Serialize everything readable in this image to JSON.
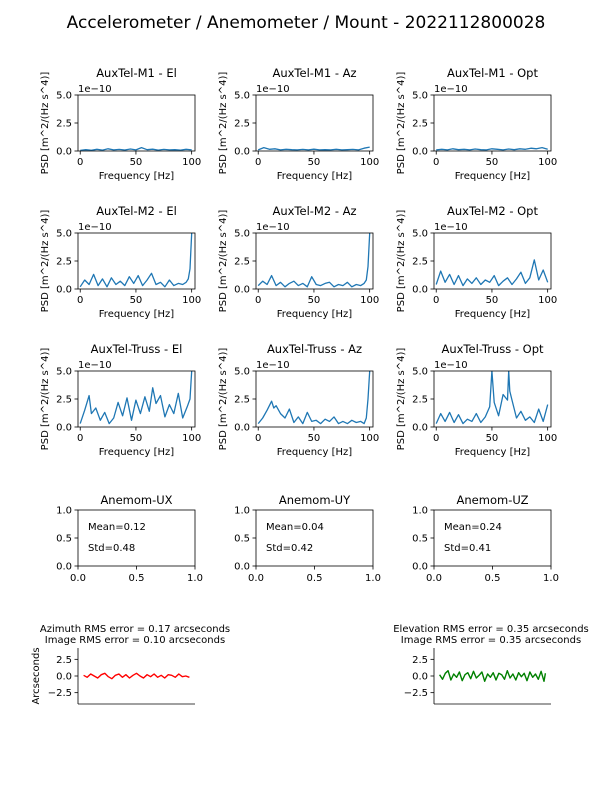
{
  "figure_title": "Accelerometer / Anemometer / Mount - 2022112800028",
  "colors": {
    "psd": "#1f77b4",
    "azimuth": "#ff0000",
    "elevation": "#008000",
    "axis": "#000000"
  },
  "chart_data": [
    {
      "type": "line",
      "id": "m1-el",
      "title": "AuxTel-M1 - El",
      "xlabel": "Frequency [Hz]",
      "ylabel": "PSD [m^2/(Hz s^4)]",
      "offset_label": "1e−10",
      "xlim": [
        -2,
        103
      ],
      "ylim": [
        0,
        5.0
      ],
      "xticks": [
        0,
        50,
        100
      ],
      "yticks": [
        0.0,
        2.5,
        5.0
      ],
      "yticklabels": [
        "0.0",
        "2.5",
        "5.0"
      ],
      "series": [
        {
          "name": "PSD",
          "x": [
            0,
            5,
            10,
            15,
            20,
            25,
            30,
            35,
            40,
            45,
            50,
            55,
            60,
            65,
            70,
            75,
            80,
            85,
            90,
            95,
            100
          ],
          "values": [
            0.05,
            0.12,
            0.06,
            0.15,
            0.08,
            0.2,
            0.1,
            0.14,
            0.09,
            0.18,
            0.1,
            0.3,
            0.12,
            0.16,
            0.08,
            0.14,
            0.1,
            0.12,
            0.08,
            0.15,
            0.1
          ]
        }
      ]
    },
    {
      "type": "line",
      "id": "m1-az",
      "title": "AuxTel-M1 - Az",
      "xlabel": "Frequency [Hz]",
      "ylabel": "PSD [m^2/(Hz s^4)]",
      "offset_label": "1e−10",
      "xlim": [
        -2,
        103
      ],
      "ylim": [
        0,
        5.0
      ],
      "xticks": [
        0,
        50,
        100
      ],
      "yticks": [
        0.0,
        2.5,
        5.0
      ],
      "yticklabels": [
        "0.0",
        "2.5",
        "5.0"
      ],
      "series": [
        {
          "name": "PSD",
          "x": [
            0,
            5,
            10,
            15,
            20,
            25,
            30,
            35,
            40,
            45,
            50,
            55,
            60,
            65,
            70,
            75,
            80,
            85,
            90,
            95,
            100
          ],
          "values": [
            0.1,
            0.3,
            0.15,
            0.2,
            0.1,
            0.15,
            0.12,
            0.1,
            0.14,
            0.1,
            0.16,
            0.1,
            0.12,
            0.1,
            0.15,
            0.1,
            0.12,
            0.14,
            0.1,
            0.25,
            0.35
          ]
        }
      ]
    },
    {
      "type": "line",
      "id": "m1-opt",
      "title": "AuxTel-M1 - Opt",
      "xlabel": "Frequency [Hz]",
      "ylabel": "PSD [m^2/(Hz s^4)]",
      "offset_label": "1e−10",
      "xlim": [
        -2,
        103
      ],
      "ylim": [
        0,
        5.0
      ],
      "xticks": [
        0,
        50,
        100
      ],
      "yticks": [
        0.0,
        2.5,
        5.0
      ],
      "yticklabels": [
        "0.0",
        "2.5",
        "5.0"
      ],
      "series": [
        {
          "name": "PSD",
          "x": [
            0,
            5,
            10,
            15,
            20,
            25,
            30,
            35,
            40,
            45,
            50,
            55,
            60,
            65,
            70,
            75,
            80,
            85,
            90,
            95,
            100
          ],
          "values": [
            0.1,
            0.15,
            0.1,
            0.2,
            0.12,
            0.15,
            0.1,
            0.18,
            0.12,
            0.1,
            0.2,
            0.15,
            0.1,
            0.18,
            0.12,
            0.2,
            0.15,
            0.25,
            0.2,
            0.3,
            0.15
          ]
        }
      ]
    },
    {
      "type": "line",
      "id": "m2-el",
      "title": "AuxTel-M2 - El",
      "xlabel": "Frequency [Hz]",
      "ylabel": "PSD [m^2/(Hz s^4)]",
      "offset_label": "1e−10",
      "xlim": [
        -2,
        103
      ],
      "ylim": [
        0,
        5.0
      ],
      "xticks": [
        0,
        50,
        100
      ],
      "yticks": [
        0.0,
        2.5,
        5.0
      ],
      "yticklabels": [
        "0.0",
        "2.5",
        "5.0"
      ],
      "series": [
        {
          "name": "PSD",
          "x": [
            0,
            4,
            8,
            12,
            16,
            20,
            24,
            28,
            32,
            36,
            40,
            44,
            48,
            52,
            56,
            60,
            64,
            68,
            72,
            76,
            80,
            84,
            88,
            92,
            95,
            97,
            98.5,
            100
          ],
          "values": [
            0.2,
            0.8,
            0.4,
            1.3,
            0.3,
            0.9,
            0.2,
            1.0,
            0.4,
            0.7,
            0.3,
            1.1,
            0.5,
            1.2,
            0.3,
            0.8,
            1.4,
            0.4,
            0.6,
            0.2,
            0.8,
            0.3,
            0.5,
            0.4,
            0.6,
            0.9,
            1.8,
            5.0
          ]
        }
      ]
    },
    {
      "type": "line",
      "id": "m2-az",
      "title": "AuxTel-M2 - Az",
      "xlabel": "Frequency [Hz]",
      "ylabel": "PSD [m^2/(Hz s^4)]",
      "offset_label": "1e−10",
      "xlim": [
        -2,
        103
      ],
      "ylim": [
        0,
        5.0
      ],
      "xticks": [
        0,
        50,
        100
      ],
      "yticks": [
        0.0,
        2.5,
        5.0
      ],
      "yticklabels": [
        "0.0",
        "2.5",
        "5.0"
      ],
      "series": [
        {
          "name": "PSD",
          "x": [
            0,
            4,
            8,
            12,
            16,
            20,
            24,
            28,
            32,
            36,
            40,
            44,
            48,
            52,
            56,
            60,
            64,
            68,
            72,
            76,
            80,
            84,
            88,
            92,
            95,
            97,
            98.5,
            100
          ],
          "values": [
            0.3,
            0.7,
            0.4,
            1.2,
            0.3,
            0.6,
            0.2,
            0.5,
            0.7,
            0.3,
            0.5,
            0.2,
            1.1,
            0.4,
            0.3,
            0.5,
            0.6,
            0.2,
            0.4,
            0.3,
            0.6,
            0.2,
            0.4,
            0.3,
            0.5,
            0.8,
            2.0,
            5.0
          ]
        }
      ]
    },
    {
      "type": "line",
      "id": "m2-opt",
      "title": "AuxTel-M2 - Opt",
      "xlabel": "Frequency [Hz]",
      "ylabel": "PSD [m^2/(Hz s^4)]",
      "offset_label": "1e−10",
      "xlim": [
        -2,
        103
      ],
      "ylim": [
        0,
        5.0
      ],
      "xticks": [
        0,
        50,
        100
      ],
      "yticks": [
        0.0,
        2.5,
        5.0
      ],
      "yticklabels": [
        "0.0",
        "2.5",
        "5.0"
      ],
      "series": [
        {
          "name": "PSD",
          "x": [
            0,
            4,
            8,
            12,
            16,
            20,
            24,
            28,
            32,
            36,
            40,
            44,
            48,
            52,
            56,
            60,
            64,
            68,
            72,
            76,
            80,
            84,
            88,
            92,
            96,
            100
          ],
          "values": [
            0.4,
            1.6,
            0.6,
            1.3,
            0.4,
            1.2,
            0.3,
            0.9,
            0.5,
            1.0,
            0.4,
            0.8,
            0.6,
            1.2,
            0.3,
            0.7,
            1.0,
            0.4,
            0.9,
            1.5,
            0.5,
            1.0,
            2.6,
            0.8,
            1.7,
            0.6
          ]
        }
      ]
    },
    {
      "type": "line",
      "id": "truss-el",
      "title": "AuxTel-Truss - El",
      "xlabel": "Frequency [Hz]",
      "ylabel": "PSD [m^2/(Hz s^4)]",
      "offset_label": "1e−10",
      "xlim": [
        -2,
        103
      ],
      "ylim": [
        0,
        5.0
      ],
      "xticks": [
        0,
        50,
        100
      ],
      "yticks": [
        0.0,
        2.5,
        5.0
      ],
      "yticklabels": [
        "0.0",
        "2.5",
        "5.0"
      ],
      "series": [
        {
          "name": "PSD",
          "x": [
            0,
            4,
            8,
            10,
            14,
            18,
            22,
            26,
            30,
            34,
            38,
            42,
            46,
            50,
            54,
            58,
            62,
            65,
            68,
            72,
            76,
            80,
            84,
            88,
            92,
            96,
            98.5,
            100
          ],
          "values": [
            0.3,
            1.5,
            2.8,
            1.2,
            1.7,
            0.6,
            1.3,
            0.3,
            0.8,
            2.2,
            1.0,
            2.6,
            0.6,
            2.4,
            1.2,
            2.7,
            1.4,
            3.5,
            2.1,
            2.8,
            0.9,
            2.0,
            1.2,
            3.0,
            0.8,
            1.8,
            2.5,
            5.0
          ]
        }
      ]
    },
    {
      "type": "line",
      "id": "truss-az",
      "title": "AuxTel-Truss - Az",
      "xlabel": "Frequency [Hz]",
      "ylabel": "PSD [m^2/(Hz s^4)]",
      "offset_label": "1e−10",
      "xlim": [
        -2,
        103
      ],
      "ylim": [
        0,
        5.0
      ],
      "xticks": [
        0,
        50,
        100
      ],
      "yticks": [
        0.0,
        2.5,
        5.0
      ],
      "yticklabels": [
        "0.0",
        "2.5",
        "5.0"
      ],
      "series": [
        {
          "name": "PSD",
          "x": [
            0,
            4,
            8,
            12,
            14,
            16,
            20,
            24,
            28,
            32,
            36,
            40,
            44,
            48,
            52,
            56,
            60,
            64,
            68,
            72,
            76,
            80,
            84,
            88,
            92,
            95,
            97,
            98.5,
            100
          ],
          "values": [
            0.3,
            0.8,
            1.5,
            2.3,
            1.7,
            1.9,
            1.2,
            0.8,
            1.6,
            0.4,
            0.9,
            0.3,
            1.3,
            0.5,
            0.6,
            0.3,
            0.7,
            0.5,
            0.9,
            0.3,
            0.5,
            0.3,
            0.6,
            0.4,
            0.5,
            0.3,
            0.8,
            2.5,
            5.0
          ]
        }
      ]
    },
    {
      "type": "line",
      "id": "truss-opt",
      "title": "AuxTel-Truss - Opt",
      "xlabel": "Frequency [Hz]",
      "ylabel": "PSD [m^2/(Hz s^4)]",
      "offset_label": "1e−10",
      "xlim": [
        -2,
        103
      ],
      "ylim": [
        0,
        5.0
      ],
      "xticks": [
        0,
        50,
        100
      ],
      "yticks": [
        0.0,
        2.5,
        5.0
      ],
      "yticklabels": [
        "0.0",
        "2.5",
        "5.0"
      ],
      "series": [
        {
          "name": "PSD",
          "x": [
            0,
            4,
            8,
            12,
            16,
            20,
            24,
            28,
            32,
            36,
            40,
            44,
            48,
            50,
            52,
            56,
            60,
            64,
            65,
            66,
            68,
            72,
            76,
            80,
            84,
            88,
            92,
            96,
            100
          ],
          "values": [
            0.3,
            1.2,
            0.5,
            1.3,
            0.4,
            1.1,
            0.3,
            0.7,
            0.5,
            1.2,
            0.4,
            0.9,
            1.8,
            5.0,
            2.2,
            1.0,
            2.9,
            2.4,
            5.0,
            3.2,
            2.4,
            0.8,
            1.4,
            0.6,
            0.9,
            0.4,
            1.6,
            0.5,
            2.0
          ]
        }
      ]
    },
    {
      "type": "table",
      "id": "anemom-ux",
      "title": "Anemom-UX",
      "xlim": [
        0,
        1
      ],
      "ylim": [
        0,
        1
      ],
      "xticks": [
        0.0,
        0.5,
        1.0
      ],
      "xticklabels": [
        "0.0",
        "0.5",
        "1.0"
      ],
      "yticks": [
        0.0,
        0.5,
        1.0
      ],
      "yticklabels": [
        "0.0",
        "0.5",
        "1.0"
      ],
      "annotations": [
        "Mean=0.12",
        "Std=0.48"
      ]
    },
    {
      "type": "table",
      "id": "anemom-uy",
      "title": "Anemom-UY",
      "xlim": [
        0,
        1
      ],
      "ylim": [
        0,
        1
      ],
      "xticks": [
        0.0,
        0.5,
        1.0
      ],
      "xticklabels": [
        "0.0",
        "0.5",
        "1.0"
      ],
      "yticks": [
        0.0,
        0.5,
        1.0
      ],
      "yticklabels": [
        "0.0",
        "0.5",
        "1.0"
      ],
      "annotations": [
        "Mean=0.04",
        "Std=0.42"
      ]
    },
    {
      "type": "table",
      "id": "anemom-uz",
      "title": "Anemom-UZ",
      "xlim": [
        0,
        1
      ],
      "ylim": [
        0,
        1
      ],
      "xticks": [
        0.0,
        0.5,
        1.0
      ],
      "xticklabels": [
        "0.0",
        "0.5",
        "1.0"
      ],
      "yticks": [
        0.0,
        0.5,
        1.0
      ],
      "yticklabels": [
        "0.0",
        "0.5",
        "1.0"
      ],
      "annotations": [
        "Mean=0.24",
        "Std=0.41"
      ]
    },
    {
      "type": "line",
      "id": "az-error",
      "title_lines": [
        "Azimuth RMS error = 0.17 arcseconds",
        "Image RMS error = 0.10 arcseconds"
      ],
      "ylabel": "Arcseconds",
      "ylim": [
        -4.2,
        4.2
      ],
      "yticks": [
        2.5,
        0.0,
        -2.5
      ],
      "yticklabels": [
        "2.5",
        "0.0",
        "−2.5"
      ],
      "series": [
        {
          "name": "Azimuth error",
          "color_key": "azimuth",
          "x": [
            0,
            5,
            10,
            15,
            20,
            25,
            30,
            35,
            40,
            45,
            50,
            55,
            60,
            65,
            70,
            75,
            80,
            85,
            90,
            95,
            100,
            105,
            110,
            115,
            120,
            125,
            130,
            135,
            140,
            145,
            150
          ],
          "values": [
            0.1,
            -0.2,
            0.3,
            0.0,
            -0.3,
            0.2,
            0.4,
            -0.1,
            -0.4,
            0.1,
            0.3,
            -0.2,
            0.2,
            -0.3,
            0.1,
            0.4,
            0.0,
            -0.3,
            0.2,
            -0.1,
            0.3,
            -0.2,
            0.1,
            -0.3,
            0.2,
            0.1,
            -0.2,
            0.3,
            -0.1,
            0.0,
            -0.2
          ]
        }
      ]
    },
    {
      "type": "line",
      "id": "el-error",
      "title_lines": [
        "Elevation RMS error = 0.35 arcseconds",
        "Image RMS error = 0.35 arcseconds"
      ],
      "ylim": [
        -4.2,
        4.2
      ],
      "yticks": [
        2.5,
        0.0,
        -2.5
      ],
      "yticklabels": [
        "2.5",
        "0.0",
        "−2.5"
      ],
      "series": [
        {
          "name": "Elevation error",
          "color_key": "elevation",
          "x": [
            0,
            4,
            8,
            12,
            16,
            20,
            24,
            28,
            32,
            36,
            40,
            44,
            48,
            52,
            56,
            60,
            64,
            68,
            72,
            76,
            80,
            84,
            88,
            92,
            96,
            100,
            104,
            108,
            112,
            116,
            120,
            124,
            128,
            132,
            136,
            140,
            144,
            148,
            150
          ],
          "values": [
            0.2,
            -0.5,
            0.4,
            0.8,
            -0.6,
            0.3,
            -0.2,
            0.6,
            -0.7,
            0.2,
            0.5,
            -0.4,
            0.7,
            -0.3,
            0.1,
            0.6,
            -0.8,
            0.3,
            -0.2,
            0.5,
            -0.6,
            0.4,
            0.2,
            -0.5,
            0.8,
            -0.3,
            0.3,
            -0.6,
            0.5,
            -0.1,
            0.4,
            -0.7,
            0.6,
            -0.2,
            0.3,
            -0.5,
            0.7,
            -0.8,
            0.4
          ]
        }
      ]
    }
  ]
}
